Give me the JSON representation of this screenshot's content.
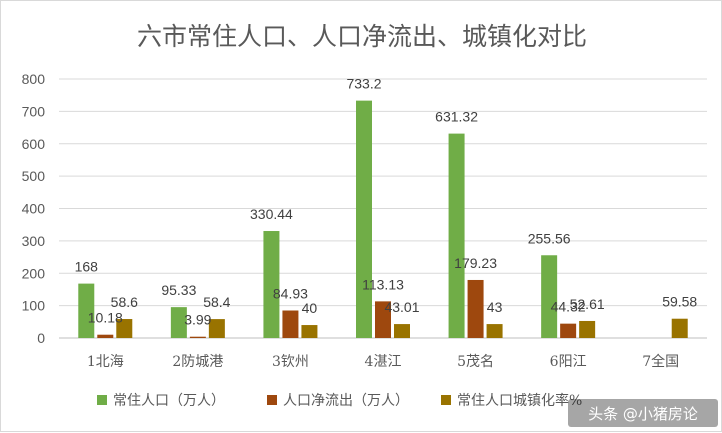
{
  "chart_data": {
    "type": "bar",
    "title": "六市常住人口、人口净流出、城镇化对比",
    "categories": [
      "1北海",
      "2防城港",
      "3钦州",
      "4湛江",
      "5茂名",
      "6阳江",
      "7全国"
    ],
    "series": [
      {
        "name": "常住人口（万人）",
        "color": "#70ad47",
        "values": [
          168,
          95.33,
          330.44,
          733.2,
          631.32,
          255.56,
          null
        ],
        "labels": [
          "168",
          "95.33",
          "330.44",
          "733.2",
          "631.32",
          "255.56",
          ""
        ]
      },
      {
        "name": "人口净流出（万人）",
        "color": "#9e480e",
        "values": [
          10.18,
          3.99,
          84.93,
          113.13,
          179.23,
          44.32,
          null
        ],
        "labels": [
          "10.18",
          "3.99",
          "84.93",
          "113.13",
          "179.23",
          "44.32",
          ""
        ]
      },
      {
        "name": "常住人口城镇化率%",
        "color": "#997300",
        "values": [
          58.6,
          58.4,
          40,
          43.01,
          43,
          52.61,
          59.58
        ],
        "labels": [
          "58.6",
          "58.4",
          "40",
          "43.01",
          "43",
          "52.61",
          "59.58"
        ]
      }
    ],
    "ylim": [
      0,
      800
    ],
    "yticks": [
      0,
      100,
      200,
      300,
      400,
      500,
      600,
      700,
      800
    ],
    "grid": true,
    "legend": "bottom"
  },
  "watermark": "头条 @小猪房论"
}
